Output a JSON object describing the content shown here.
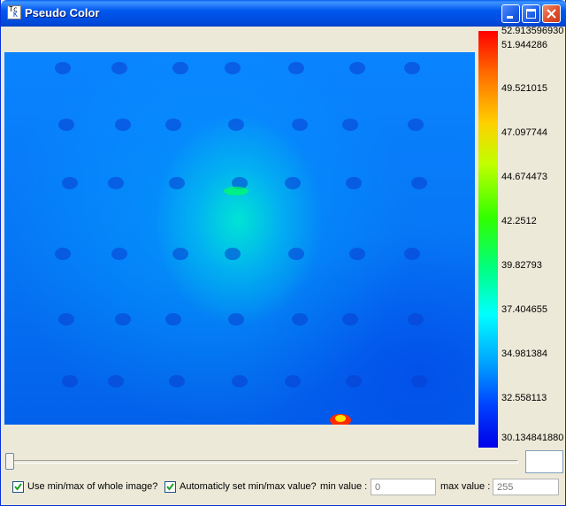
{
  "window": {
    "title": "Pseudo Color",
    "app_icon_text": [
      "Tc",
      "K"
    ]
  },
  "colorbar": {
    "labels": [
      "52.913596930",
      "51.944286",
      "49.521015",
      "47.097744",
      "44.674473",
      "42.2512",
      "39.82793",
      "37.404655",
      "34.981384",
      "32.558113",
      "30.134841880"
    ]
  },
  "controls": {
    "use_minmax_label": "Use min/max of whole image?",
    "use_minmax_checked": true,
    "auto_minmax_label": "Automaticly set min/max value?",
    "auto_minmax_checked": true,
    "min_value_label": "min value :",
    "min_value_placeholder": "0",
    "max_value_label": "max value :",
    "max_value_placeholder": "255",
    "slider_value": 0
  },
  "icons": {
    "minimize": "minimize-icon",
    "maximize": "maximize-icon",
    "close": "close-icon",
    "check": "checkmark-icon"
  },
  "colors": {
    "titlebar": "#0058EE",
    "window_bg": "#ECE9D8",
    "colorbar_top": "#FF0000",
    "colorbar_bottom": "#0000E8"
  }
}
